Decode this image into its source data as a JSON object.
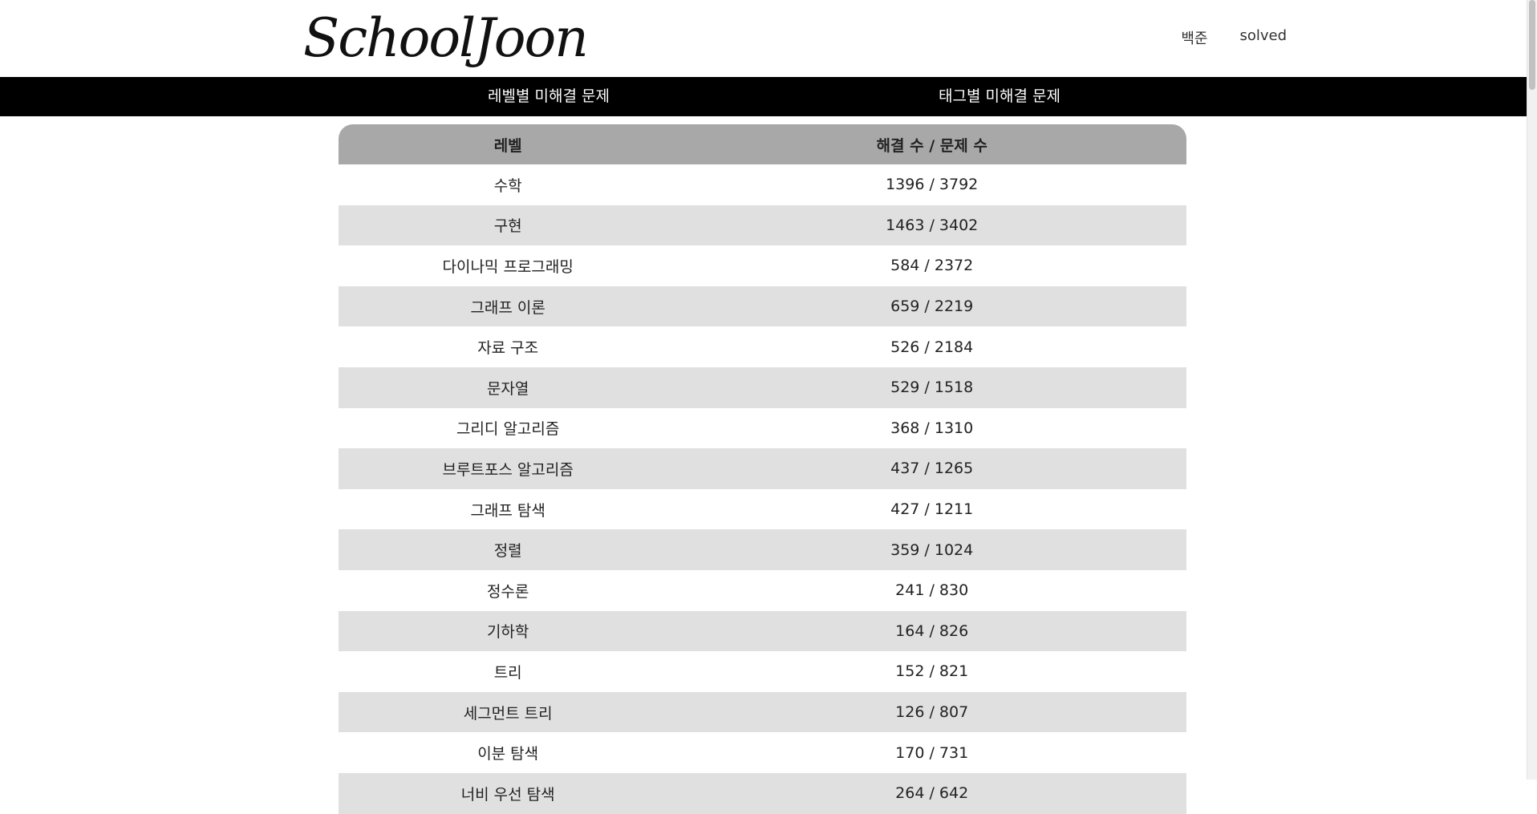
{
  "header": {
    "logo": "SchoolJoon",
    "links": [
      "백준",
      "solved"
    ]
  },
  "nav": {
    "level_tab": "레벨별 미해결 문제",
    "tag_tab": "태그별 미해결 문제"
  },
  "table": {
    "headers": [
      "레벨",
      "해결 수 / 문제 수"
    ],
    "rows": [
      {
        "name": "수학",
        "count": "1396 / 3792"
      },
      {
        "name": "구현",
        "count": "1463 / 3402"
      },
      {
        "name": "다이나믹 프로그래밍",
        "count": "584 / 2372"
      },
      {
        "name": "그래프 이론",
        "count": "659 / 2219"
      },
      {
        "name": "자료 구조",
        "count": "526 / 2184"
      },
      {
        "name": "문자열",
        "count": "529 / 1518"
      },
      {
        "name": "그리디 알고리즘",
        "count": "368 / 1310"
      },
      {
        "name": "브루트포스 알고리즘",
        "count": "437 / 1265"
      },
      {
        "name": "그래프 탐색",
        "count": "427 / 1211"
      },
      {
        "name": "정렬",
        "count": "359 / 1024"
      },
      {
        "name": "정수론",
        "count": "241 / 830"
      },
      {
        "name": "기하학",
        "count": "164 / 826"
      },
      {
        "name": "트리",
        "count": "152 / 821"
      },
      {
        "name": "세그먼트 트리",
        "count": "126 / 807"
      },
      {
        "name": "이분 탐색",
        "count": "170 / 731"
      },
      {
        "name": "너비 우선 탐색",
        "count": "264 / 642"
      }
    ]
  },
  "colors": {
    "header_row": "#a8a8a8",
    "stripe": "#e0e0e0",
    "navbar": "#000000"
  }
}
